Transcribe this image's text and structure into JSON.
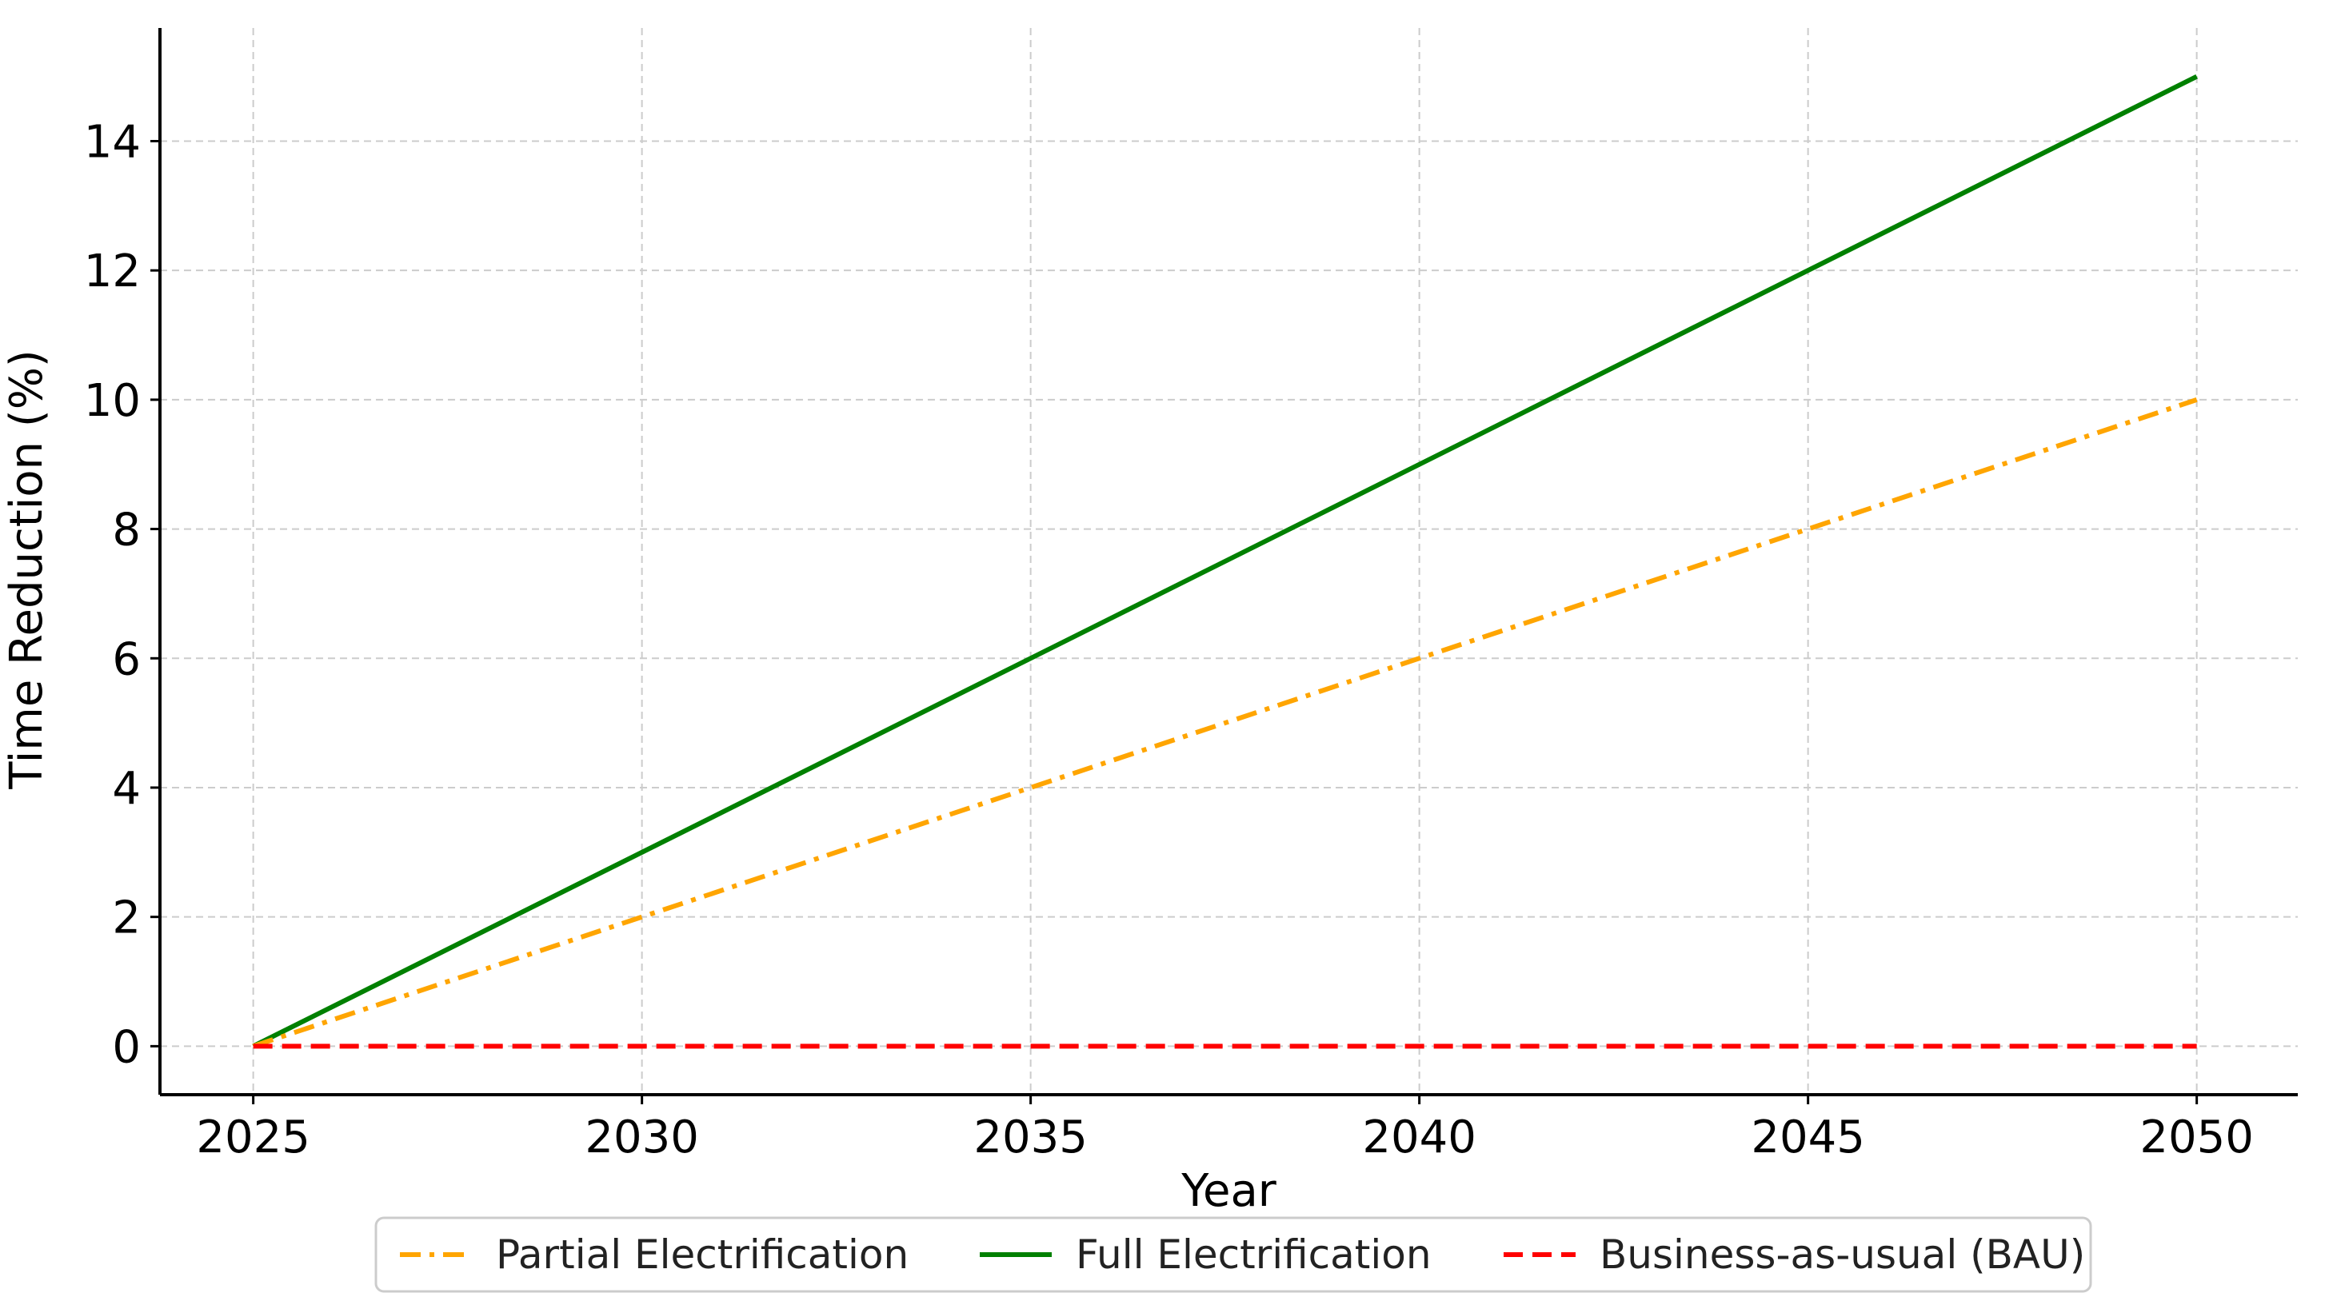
{
  "chart_data": {
    "type": "line",
    "title": "",
    "xlabel": "Year",
    "ylabel": "Time Reduction (%)",
    "x": [
      2025,
      2050
    ],
    "xticks": [
      2025,
      2030,
      2035,
      2040,
      2045,
      2050
    ],
    "xtick_labels": [
      "2025",
      "2030",
      "2035",
      "2040",
      "2045",
      "2050"
    ],
    "yticks": [
      0,
      2,
      4,
      6,
      8,
      10,
      12,
      14
    ],
    "ytick_labels": [
      "0",
      "2",
      "4",
      "6",
      "8",
      "10",
      "12",
      "14"
    ],
    "xlim": [
      2023.8,
      2051.3
    ],
    "ylim": [
      -0.75,
      15.75
    ],
    "grid": true,
    "legend_placement": "bottom-center, below axes",
    "series": [
      {
        "name": "Partial Electrification",
        "x": [
          2025,
          2050
        ],
        "values": [
          0,
          10
        ],
        "color": "#ffa500",
        "style": "dashdot"
      },
      {
        "name": "Full Electrification",
        "x": [
          2025,
          2050
        ],
        "values": [
          0,
          15
        ],
        "color": "#008000",
        "style": "solid"
      },
      {
        "name": "Business-as-usual (BAU)",
        "x": [
          2025,
          2050
        ],
        "values": [
          0,
          0
        ],
        "color": "#ff0000",
        "style": "dashed"
      }
    ]
  }
}
